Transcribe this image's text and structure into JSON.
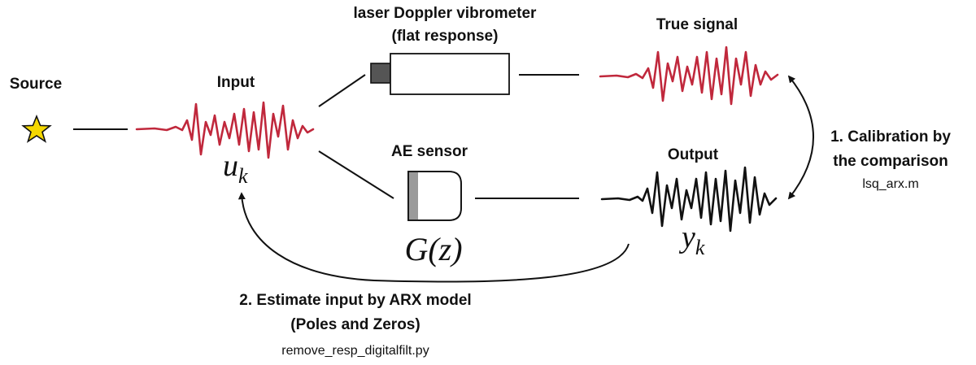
{
  "labels": {
    "source": "Source",
    "input": "Input",
    "ldv_line1": "laser Doppler vibrometer",
    "ldv_line2": "(flat response)",
    "true_signal": "True signal",
    "ae_sensor": "AE sensor",
    "output": "Output",
    "calibration_line1": "1. Calibration by",
    "calibration_line2": "the comparison",
    "calibration_script": "lsq_arx.m",
    "estimate_line1": "2. Estimate input by ARX model",
    "estimate_line2": "(Poles and Zeros)",
    "estimate_script": "remove_resp_digitalfilt.py"
  },
  "math": {
    "input_symbol": "u",
    "input_subscript": "k",
    "output_symbol": "y",
    "output_subscript": "k",
    "transfer_fn": "G(z)"
  },
  "colors": {
    "input_signal": "#c0283c",
    "true_signal": "#c0283c",
    "output_signal": "#111111",
    "source_star": "#f5d800",
    "sensor_contact": "#9a9a9a",
    "ldv_lens": "#555555"
  },
  "icons": {
    "source": "star-icon",
    "ldv": "laser-vibrometer-icon",
    "ae": "ae-sensor-icon"
  }
}
